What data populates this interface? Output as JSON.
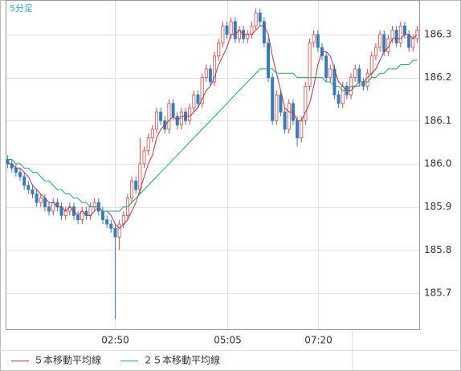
{
  "chart_data": {
    "type": "candlestick",
    "title": "5分足",
    "categories": [
      null,
      null,
      null,
      null,
      null,
      null,
      null,
      null,
      null,
      null,
      null,
      null,
      null,
      null,
      null,
      null,
      null,
      null,
      null,
      null,
      null,
      null,
      null,
      null,
      null,
      null,
      "02:50",
      null,
      null,
      null,
      null,
      null,
      null,
      null,
      null,
      null,
      null,
      null,
      null,
      null,
      null,
      null,
      null,
      null,
      null,
      null,
      null,
      null,
      null,
      null,
      null,
      null,
      null,
      "05:05",
      null,
      null,
      null,
      null,
      null,
      null,
      null,
      null,
      null,
      null,
      null,
      null,
      null,
      null,
      null,
      null,
      null,
      null,
      null,
      null,
      null,
      "07:20",
      null,
      null,
      null,
      null,
      null,
      null,
      null,
      null,
      null,
      null,
      null,
      null,
      null,
      null,
      null,
      null,
      null,
      null,
      null,
      null,
      null,
      null,
      null,
      null
    ],
    "open": [
      186.01,
      186.0,
      185.99,
      185.98,
      185.97,
      185.95,
      185.94,
      185.93,
      185.91,
      185.92,
      185.9,
      185.89,
      185.91,
      185.9,
      185.88,
      185.89,
      185.9,
      185.88,
      185.87,
      185.89,
      185.88,
      185.9,
      185.91,
      185.89,
      185.87,
      185.86,
      185.85,
      185.83,
      185.86,
      185.88,
      185.92,
      185.96,
      185.94,
      186.0,
      186.03,
      186.06,
      186.08,
      186.12,
      186.1,
      186.08,
      186.14,
      186.11,
      186.09,
      186.12,
      186.1,
      186.13,
      186.16,
      186.14,
      186.2,
      186.22,
      186.19,
      186.25,
      186.28,
      186.32,
      186.3,
      186.33,
      186.29,
      186.31,
      186.29,
      186.3,
      186.32,
      186.35,
      186.33,
      186.28,
      186.2,
      186.1,
      186.16,
      186.12,
      186.08,
      186.14,
      186.1,
      186.06,
      186.1,
      186.18,
      186.28,
      186.3,
      186.27,
      186.25,
      186.2,
      186.22,
      186.16,
      186.14,
      186.18,
      186.16,
      186.2,
      186.22,
      186.19,
      186.18,
      186.21,
      186.25,
      186.27,
      186.3,
      186.26,
      186.29,
      186.31,
      186.28,
      186.32,
      186.3,
      186.27,
      186.29
    ],
    "high": [
      186.02,
      186.01,
      186.0,
      185.99,
      185.98,
      185.96,
      185.95,
      185.94,
      185.93,
      185.93,
      185.91,
      185.92,
      185.92,
      185.91,
      185.9,
      185.91,
      185.91,
      185.89,
      185.9,
      185.9,
      185.91,
      185.92,
      185.92,
      185.9,
      185.88,
      185.87,
      185.86,
      185.87,
      185.89,
      185.93,
      185.97,
      185.97,
      186.06,
      186.04,
      186.07,
      186.09,
      186.13,
      186.13,
      186.11,
      186.15,
      186.15,
      186.12,
      186.13,
      186.13,
      186.14,
      186.17,
      186.17,
      186.21,
      186.23,
      186.23,
      186.26,
      186.29,
      186.33,
      186.33,
      186.34,
      186.34,
      186.32,
      186.32,
      186.31,
      186.33,
      186.36,
      186.36,
      186.34,
      186.29,
      186.21,
      186.17,
      186.17,
      186.13,
      186.15,
      186.15,
      186.11,
      186.11,
      186.19,
      186.29,
      186.31,
      186.31,
      186.28,
      186.26,
      186.23,
      186.23,
      186.17,
      186.19,
      186.19,
      186.21,
      186.23,
      186.23,
      186.2,
      186.22,
      186.26,
      186.28,
      186.31,
      186.31,
      186.3,
      186.32,
      186.32,
      186.33,
      186.33,
      186.31,
      186.3,
      186.32
    ],
    "low": [
      185.99,
      185.98,
      185.97,
      185.96,
      185.94,
      185.93,
      185.92,
      185.9,
      185.9,
      185.89,
      185.88,
      185.88,
      185.89,
      185.87,
      185.87,
      185.88,
      185.87,
      185.86,
      185.86,
      185.87,
      185.87,
      185.89,
      185.88,
      185.86,
      185.85,
      185.84,
      185.64,
      185.8,
      185.85,
      185.87,
      185.91,
      185.93,
      185.93,
      185.99,
      186.02,
      186.05,
      186.07,
      186.09,
      186.07,
      186.07,
      186.1,
      186.08,
      186.08,
      186.09,
      186.09,
      186.12,
      186.13,
      186.13,
      186.19,
      186.18,
      186.18,
      186.24,
      186.27,
      186.29,
      186.29,
      186.28,
      186.28,
      186.28,
      186.28,
      186.29,
      186.31,
      186.32,
      186.27,
      186.19,
      186.09,
      186.09,
      186.11,
      186.07,
      186.07,
      186.09,
      186.04,
      186.05,
      186.09,
      186.17,
      186.27,
      186.26,
      186.24,
      186.19,
      186.19,
      186.15,
      186.13,
      186.13,
      186.15,
      186.15,
      186.19,
      186.18,
      186.17,
      186.17,
      186.2,
      186.24,
      186.26,
      186.25,
      186.25,
      186.28,
      186.27,
      186.27,
      186.29,
      186.26,
      186.26,
      186.28
    ],
    "close": [
      186.0,
      185.99,
      185.98,
      185.97,
      185.95,
      185.94,
      185.93,
      185.91,
      185.92,
      185.9,
      185.89,
      185.91,
      185.9,
      185.88,
      185.89,
      185.9,
      185.88,
      185.87,
      185.89,
      185.88,
      185.9,
      185.91,
      185.89,
      185.87,
      185.86,
      185.85,
      185.83,
      185.86,
      185.88,
      185.92,
      185.96,
      185.94,
      186.0,
      186.03,
      186.06,
      186.08,
      186.12,
      186.1,
      186.08,
      186.14,
      186.11,
      186.09,
      186.12,
      186.1,
      186.13,
      186.16,
      186.14,
      186.2,
      186.22,
      186.19,
      186.25,
      186.28,
      186.32,
      186.3,
      186.33,
      186.29,
      186.31,
      186.29,
      186.3,
      186.32,
      186.35,
      186.33,
      186.28,
      186.2,
      186.1,
      186.16,
      186.12,
      186.08,
      186.14,
      186.1,
      186.06,
      186.1,
      186.18,
      186.28,
      186.3,
      186.27,
      186.25,
      186.2,
      186.22,
      186.16,
      186.14,
      186.18,
      186.16,
      186.2,
      186.22,
      186.19,
      186.18,
      186.21,
      186.25,
      186.27,
      186.3,
      186.26,
      186.29,
      186.31,
      186.28,
      186.32,
      186.3,
      186.27,
      186.29,
      186.31
    ],
    "up_color": "#c0504d",
    "down_color": "#3d7ab8",
    "series": [
      {
        "name": "５本移動平均線",
        "color": "#a03a4a",
        "values": [
          186.0,
          186.0,
          185.99,
          185.99,
          185.98,
          185.97,
          185.95,
          185.94,
          185.93,
          185.92,
          185.91,
          185.91,
          185.9,
          185.9,
          185.89,
          185.9,
          185.89,
          185.88,
          185.89,
          185.88,
          185.88,
          185.89,
          185.9,
          185.89,
          185.89,
          185.88,
          185.86,
          185.85,
          185.86,
          185.87,
          185.89,
          185.91,
          185.94,
          185.97,
          186.0,
          186.02,
          186.06,
          186.08,
          186.09,
          186.1,
          186.11,
          186.1,
          186.11,
          186.11,
          186.11,
          186.12,
          186.13,
          186.15,
          186.17,
          186.18,
          186.2,
          186.23,
          186.25,
          186.27,
          186.3,
          186.3,
          186.31,
          186.3,
          186.3,
          186.3,
          186.31,
          186.32,
          186.32,
          186.3,
          186.25,
          186.21,
          186.17,
          186.13,
          186.12,
          186.12,
          186.1,
          186.1,
          186.12,
          186.14,
          186.18,
          186.23,
          186.26,
          186.26,
          186.25,
          186.22,
          186.19,
          186.18,
          186.17,
          186.17,
          186.18,
          186.19,
          186.19,
          186.2,
          186.21,
          186.22,
          186.24,
          186.26,
          186.27,
          186.29,
          186.29,
          186.29,
          186.3,
          186.3,
          186.29,
          186.3
        ]
      },
      {
        "name": "２５本移動平均線",
        "color": "#2e9e6e",
        "values": [
          186.01,
          186.01,
          186.0,
          186.0,
          185.99,
          185.99,
          185.98,
          185.98,
          185.97,
          185.96,
          185.96,
          185.95,
          185.94,
          185.94,
          185.93,
          185.93,
          185.92,
          185.92,
          185.91,
          185.91,
          185.9,
          185.9,
          185.9,
          185.89,
          185.89,
          185.89,
          185.89,
          185.89,
          185.9,
          185.9,
          185.91,
          185.92,
          185.93,
          185.94,
          185.95,
          185.96,
          185.97,
          185.98,
          185.99,
          186.0,
          186.01,
          186.02,
          186.03,
          186.04,
          186.05,
          186.06,
          186.07,
          186.08,
          186.09,
          186.1,
          186.11,
          186.12,
          186.13,
          186.14,
          186.15,
          186.16,
          186.17,
          186.18,
          186.19,
          186.2,
          186.21,
          186.22,
          186.22,
          186.22,
          186.22,
          186.21,
          186.21,
          186.21,
          186.21,
          186.21,
          186.2,
          186.2,
          186.2,
          186.2,
          186.2,
          186.2,
          186.2,
          186.19,
          186.19,
          186.18,
          186.18,
          186.17,
          186.17,
          186.18,
          186.18,
          186.18,
          186.19,
          186.19,
          186.2,
          186.2,
          186.21,
          186.21,
          186.22,
          186.22,
          186.22,
          186.23,
          186.23,
          186.23,
          186.24,
          186.24
        ]
      }
    ],
    "ylim": [
      185.616,
      186.38
    ],
    "yticks": [
      185.7,
      185.8,
      185.9,
      {
        "value": 186,
        "label": "186.0"
      },
      186.1,
      186.2,
      186.3
    ],
    "grid": true
  }
}
